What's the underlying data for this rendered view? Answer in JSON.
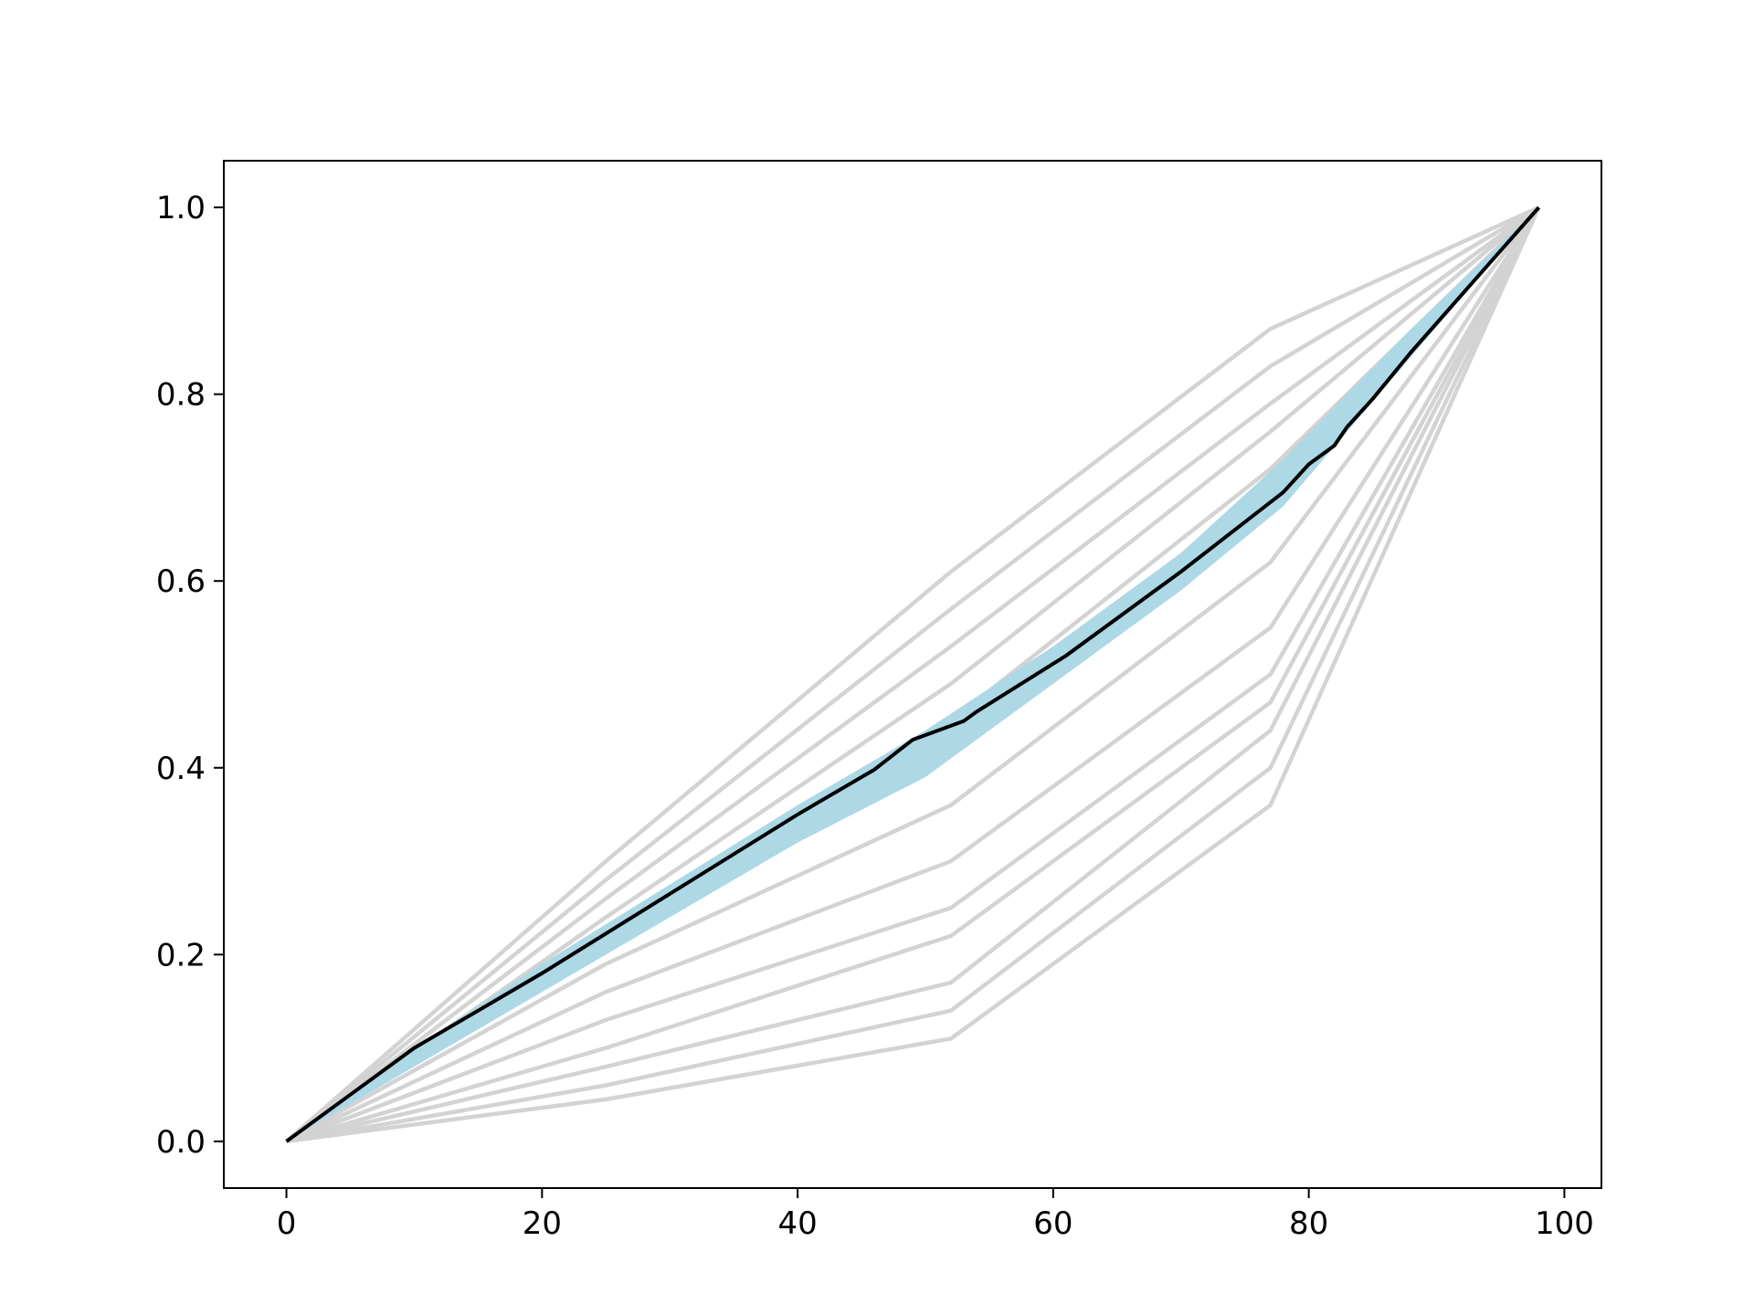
{
  "chart_data": {
    "type": "line",
    "xlim": [
      -4.9,
      102.9
    ],
    "ylim": [
      -0.05,
      1.05
    ],
    "xticks": [
      0,
      20,
      40,
      60,
      80,
      100
    ],
    "yticks": [
      {
        "value": 0,
        "label": "0.0"
      },
      {
        "value": 0.2,
        "label": "0.2"
      },
      {
        "value": 0.4,
        "label": "0.4"
      },
      {
        "value": 0.6,
        "label": "0.6"
      },
      {
        "value": 0.8,
        "label": "0.8"
      },
      {
        "value": 1,
        "label": "1.0"
      }
    ],
    "grid": false,
    "series": [
      {
        "color": "#d3d3d3",
        "x": [
          0,
          25,
          52,
          77,
          98
        ],
        "values": [
          0,
          0.3,
          0.61,
          0.87,
          1
        ]
      },
      {
        "color": "#d3d3d3",
        "x": [
          0,
          25,
          52,
          77,
          98
        ],
        "values": [
          0,
          0.28,
          0.57,
          0.83,
          1
        ]
      },
      {
        "color": "#d3d3d3",
        "x": [
          0,
          25,
          52,
          77,
          98
        ],
        "values": [
          0,
          0.26,
          0.53,
          0.79,
          1
        ]
      },
      {
        "color": "#d3d3d3",
        "x": [
          0,
          25,
          52,
          77,
          98
        ],
        "values": [
          0,
          0.24,
          0.49,
          0.76,
          1
        ]
      },
      {
        "color": "#d3d3d3",
        "x": [
          0,
          25,
          52,
          77,
          98
        ],
        "values": [
          0,
          0.22,
          0.45,
          0.72,
          1
        ]
      },
      {
        "color": "#d3d3d3",
        "x": [
          0,
          25,
          52,
          77,
          98
        ],
        "values": [
          0,
          0.19,
          0.36,
          0.62,
          1
        ]
      },
      {
        "color": "#d3d3d3",
        "x": [
          0,
          25,
          52,
          77,
          98
        ],
        "values": [
          0,
          0.16,
          0.3,
          0.55,
          1
        ]
      },
      {
        "color": "#d3d3d3",
        "x": [
          0,
          25,
          52,
          77,
          98
        ],
        "values": [
          0,
          0.13,
          0.25,
          0.5,
          1
        ]
      },
      {
        "color": "#d3d3d3",
        "x": [
          0,
          25,
          52,
          77,
          98
        ],
        "values": [
          0,
          0.1,
          0.22,
          0.47,
          1
        ]
      },
      {
        "color": "#d3d3d3",
        "x": [
          0,
          25,
          52,
          77,
          98
        ],
        "values": [
          0,
          0.08,
          0.17,
          0.44,
          1
        ]
      },
      {
        "color": "#d3d3d3",
        "x": [
          0,
          25,
          52,
          77,
          98
        ],
        "values": [
          0,
          0.06,
          0.14,
          0.4,
          1
        ]
      },
      {
        "color": "#d3d3d3",
        "x": [
          0,
          25,
          52,
          77,
          98
        ],
        "values": [
          0,
          0.045,
          0.11,
          0.36,
          1
        ]
      },
      {
        "color": "#000000",
        "x": [
          0,
          10,
          20,
          30,
          40,
          46,
          49,
          53,
          54,
          61,
          70,
          78,
          80,
          82,
          83,
          85,
          88,
          98
        ],
        "values": [
          0,
          0.1,
          0.18,
          0.265,
          0.35,
          0.398,
          0.43,
          0.45,
          0.46,
          0.52,
          0.61,
          0.695,
          0.725,
          0.745,
          0.765,
          0.795,
          0.845,
          1
        ]
      }
    ],
    "band": {
      "color": "#add8e6",
      "x": [
        0,
        10,
        20,
        40,
        50,
        60,
        70,
        78,
        88,
        98
      ],
      "lower": [
        0,
        0.08,
        0.16,
        0.32,
        0.39,
        0.49,
        0.59,
        0.68,
        0.84,
        1
      ],
      "upper": [
        0,
        0.1,
        0.19,
        0.36,
        0.44,
        0.53,
        0.63,
        0.73,
        0.87,
        1
      ]
    }
  }
}
